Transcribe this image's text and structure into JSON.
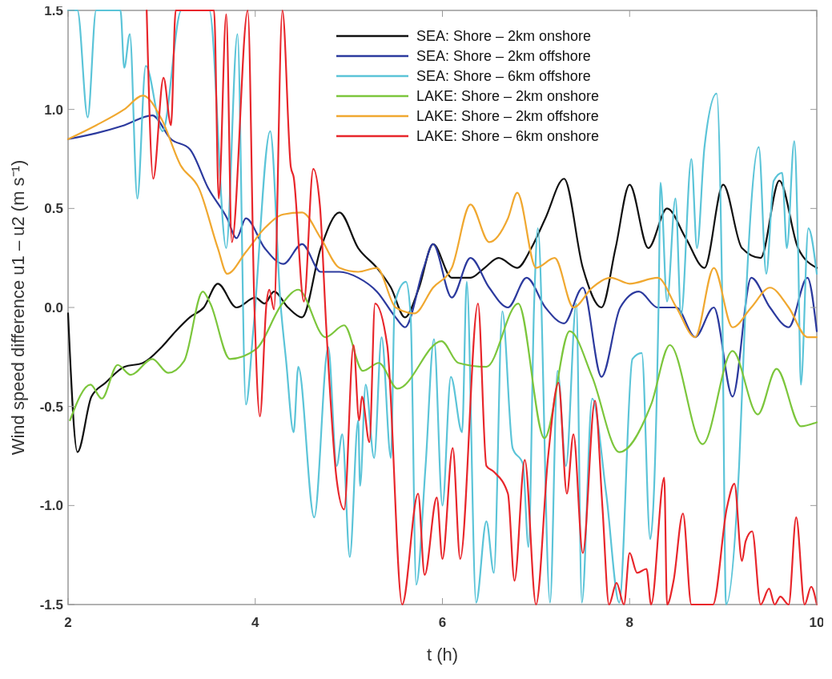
{
  "chart_data": {
    "type": "line",
    "xlabel": "t (h)",
    "ylabel": "Wind speed difference u1 – u2 (m s⁻¹)",
    "xlim": [
      2,
      10
    ],
    "ylim": [
      -1.5,
      1.5
    ],
    "xticks": [
      2,
      4,
      6,
      8,
      10
    ],
    "yticks": [
      {
        "value": -1.5,
        "label": "-1.5"
      },
      {
        "value": -1,
        "label": "-1.0"
      },
      {
        "value": -0.5,
        "label": "-0.5"
      },
      {
        "value": 0,
        "label": "0.0"
      },
      {
        "value": 0.5,
        "label": "0.5"
      },
      {
        "value": 1,
        "label": "1.0"
      },
      {
        "value": 1.5,
        "label": "1.5"
      }
    ],
    "legend": "top right",
    "series": [
      {
        "name": "SEA: Shore – 2km onshore",
        "color": "#111111",
        "x": [
          2,
          2.1,
          2.25,
          2.4,
          2.6,
          2.8,
          3.0,
          3.15,
          3.3,
          3.45,
          3.6,
          3.8,
          4.0,
          4.1,
          4.2,
          4.35,
          4.5,
          4.7,
          4.9,
          5.1,
          5.3,
          5.45,
          5.6,
          5.75,
          5.9,
          6.1,
          6.3,
          6.45,
          6.6,
          6.8,
          6.95,
          7.1,
          7.3,
          7.5,
          7.7,
          7.85,
          8.0,
          8.2,
          8.4,
          8.6,
          8.8,
          9.0,
          9.2,
          9.4,
          9.6,
          9.8,
          10
        ],
        "values": [
          -0.03,
          -0.73,
          -0.45,
          -0.38,
          -0.3,
          -0.28,
          -0.2,
          -0.12,
          -0.05,
          0.0,
          0.12,
          0.0,
          0.05,
          0.02,
          0.08,
          0.0,
          -0.05,
          0.3,
          0.48,
          0.3,
          0.2,
          0.1,
          -0.05,
          0.1,
          0.32,
          0.15,
          0.15,
          0.2,
          0.25,
          0.2,
          0.3,
          0.45,
          0.65,
          0.2,
          0.0,
          0.3,
          0.62,
          0.3,
          0.5,
          0.35,
          0.2,
          0.62,
          0.3,
          0.25,
          0.64,
          0.3,
          0.2
        ]
      },
      {
        "name": "SEA: Shore – 2km offshore",
        "color": "#2c3a9e",
        "x": [
          2,
          2.3,
          2.6,
          2.9,
          3.1,
          3.3,
          3.5,
          3.7,
          3.8,
          3.9,
          4.1,
          4.3,
          4.5,
          4.7,
          4.9,
          5.1,
          5.3,
          5.5,
          5.6,
          5.8,
          5.9,
          6.1,
          6.3,
          6.5,
          6.7,
          6.9,
          7.1,
          7.3,
          7.5,
          7.7,
          7.9,
          8.1,
          8.3,
          8.5,
          8.7,
          8.9,
          9.1,
          9.3,
          9.5,
          9.7,
          9.9,
          10
        ],
        "values": [
          0.85,
          0.88,
          0.92,
          0.97,
          0.85,
          0.8,
          0.6,
          0.45,
          0.35,
          0.45,
          0.3,
          0.22,
          0.32,
          0.18,
          0.18,
          0.15,
          0.08,
          -0.05,
          -0.1,
          0.2,
          0.32,
          0.05,
          0.25,
          0.1,
          0.0,
          0.15,
          0.0,
          -0.08,
          0.1,
          -0.35,
          0.0,
          0.08,
          0.0,
          0.0,
          -0.15,
          0.0,
          -0.45,
          0.15,
          0.0,
          -0.1,
          0.15,
          -0.12
        ]
      },
      {
        "name": "SEA: Shore – 6km offshore",
        "color": "#5bc4d8",
        "x": [
          2,
          2.1,
          2.21,
          2.3,
          2.56,
          2.6,
          2.66,
          2.74,
          2.83,
          3.01,
          3.21,
          3.51,
          3.69,
          3.81,
          3.9,
          3.98,
          4.16,
          4.27,
          4.33,
          4.41,
          4.46,
          4.63,
          4.78,
          4.87,
          4.93,
          5.01,
          5.1,
          5.12,
          5.18,
          5.27,
          5.35,
          5.45,
          5.49,
          5.61,
          5.66,
          5.72,
          5.82,
          5.91,
          6.0,
          6.09,
          6.21,
          6.26,
          6.36,
          6.47,
          6.55,
          6.64,
          6.75,
          6.86,
          6.92,
          6.98,
          7.02,
          7.15,
          7.23,
          7.32,
          7.43,
          7.49,
          7.6,
          7.75,
          7.89,
          8.03,
          8.13,
          8.22,
          8.31,
          8.33,
          8.4,
          8.49,
          8.55,
          8.66,
          8.72,
          8.8,
          8.93,
          8.99,
          9.03,
          9.17,
          9.24,
          9.38,
          9.46,
          9.54,
          9.63,
          9.68,
          9.76,
          9.8,
          9.83,
          9.91,
          10
        ],
        "values": [
          1.5,
          1.5,
          0.96,
          1.5,
          1.5,
          1.21,
          1.38,
          0.55,
          1.22,
          0.89,
          1.5,
          1.5,
          0.3,
          1.38,
          -0.49,
          -0.11,
          0.89,
          0.02,
          -0.27,
          -0.63,
          -0.3,
          -1.06,
          -0.2,
          -0.8,
          -0.64,
          -1.26,
          -0.57,
          -0.9,
          -0.39,
          -0.76,
          -0.15,
          -0.76,
          0.02,
          0.13,
          -0.04,
          -1.4,
          -0.8,
          -0.16,
          -1.0,
          -0.35,
          -0.63,
          0.13,
          -1.49,
          -1.08,
          -1.34,
          -0.02,
          -0.71,
          -0.79,
          -1.21,
          0.02,
          0.4,
          -1.49,
          -0.32,
          -0.8,
          0.02,
          -1.49,
          -0.46,
          -0.94,
          -1.49,
          -0.26,
          -0.23,
          -1.17,
          0.02,
          0.63,
          0.03,
          0.55,
          -0.04,
          0.75,
          0.3,
          0.81,
          1.08,
          0.03,
          -1.5,
          -0.8,
          0.02,
          0.81,
          0.17,
          0.64,
          0.68,
          0.3,
          0.84,
          0.3,
          -0.39,
          0.4,
          0.17
        ]
      },
      {
        "name": "LAKE: Shore – 2km onshore",
        "color": "#7cc63c",
        "x": [
          2.02,
          2.24,
          2.36,
          2.53,
          2.67,
          2.9,
          3.07,
          3.24,
          3.44,
          3.52,
          3.73,
          4.01,
          4.29,
          4.46,
          4.75,
          4.95,
          5.15,
          5.32,
          5.52,
          5.99,
          6.17,
          6.47,
          6.81,
          7.09,
          7.36,
          7.6,
          7.89,
          8.23,
          8.43,
          8.78,
          9.1,
          9.37,
          9.57,
          9.83,
          10
        ],
        "values": [
          -0.57,
          -0.39,
          -0.46,
          -0.29,
          -0.34,
          -0.26,
          -0.33,
          -0.27,
          0.08,
          0.02,
          -0.26,
          -0.21,
          0.02,
          0.09,
          -0.15,
          -0.09,
          -0.32,
          -0.28,
          -0.41,
          -0.17,
          -0.28,
          -0.3,
          0.02,
          -0.66,
          -0.12,
          -0.35,
          -0.73,
          -0.49,
          -0.19,
          -0.69,
          -0.22,
          -0.54,
          -0.31,
          -0.6,
          -0.58
        ]
      },
      {
        "name": "LAKE: Shore – 2km offshore",
        "color": "#f0a830",
        "x": [
          2,
          2.3,
          2.6,
          2.8,
          3.0,
          3.2,
          3.4,
          3.6,
          3.7,
          3.9,
          4.1,
          4.3,
          4.5,
          4.7,
          4.9,
          5.1,
          5.3,
          5.5,
          5.7,
          5.9,
          6.1,
          6.3,
          6.5,
          6.7,
          6.8,
          7.0,
          7.2,
          7.4,
          7.6,
          7.8,
          8.0,
          8.3,
          8.5,
          8.7,
          8.9,
          9.1,
          9.3,
          9.5,
          9.7,
          9.9,
          10
        ],
        "values": [
          0.85,
          0.92,
          1.0,
          1.07,
          0.95,
          0.72,
          0.6,
          0.3,
          0.17,
          0.28,
          0.4,
          0.47,
          0.48,
          0.35,
          0.2,
          0.18,
          0.2,
          0.0,
          -0.03,
          0.1,
          0.2,
          0.52,
          0.33,
          0.45,
          0.58,
          0.2,
          0.25,
          0.0,
          0.1,
          0.15,
          0.12,
          0.15,
          0.0,
          -0.15,
          0.2,
          -0.1,
          0.0,
          0.1,
          0.0,
          -0.15,
          -0.15
        ]
      },
      {
        "name": "LAKE: Shore – 6km onshore",
        "color": "#e8262b",
        "x": [
          2.84,
          2.91,
          3.02,
          3.1,
          3.15,
          3.56,
          3.61,
          3.69,
          3.75,
          3.92,
          3.99,
          4.05,
          4.12,
          4.15,
          4.2,
          4.29,
          4.38,
          4.41,
          4.52,
          4.62,
          4.69,
          4.76,
          4.87,
          4.95,
          5.05,
          5.11,
          5.14,
          5.22,
          5.28,
          5.41,
          5.57,
          5.74,
          5.81,
          5.94,
          6.0,
          6.11,
          6.19,
          6.38,
          6.47,
          6.55,
          6.7,
          6.77,
          6.88,
          7.0,
          7.13,
          7.24,
          7.33,
          7.4,
          7.5,
          7.63,
          7.71,
          7.78,
          7.86,
          7.94,
          8.0,
          8.08,
          8.18,
          8.23,
          8.37,
          8.4,
          8.47,
          8.57,
          8.66,
          8.79,
          8.89,
          9.04,
          9.12,
          9.2,
          9.24,
          9.31,
          9.4,
          9.49,
          9.55,
          9.61,
          9.7,
          9.78,
          9.87,
          9.94,
          10
        ],
        "values": [
          1.5,
          0.65,
          1.16,
          0.92,
          1.5,
          1.5,
          0.55,
          1.48,
          0.33,
          1.5,
          0.02,
          -0.55,
          0.02,
          0.09,
          -0.01,
          1.5,
          0.71,
          0.66,
          0.03,
          0.7,
          0.52,
          -0.11,
          -0.87,
          -1.02,
          -0.19,
          -0.57,
          -0.45,
          -0.68,
          0.02,
          -0.19,
          -1.5,
          -0.94,
          -1.35,
          -0.96,
          -1.27,
          -0.71,
          -1.27,
          0.02,
          -0.8,
          -0.83,
          -0.94,
          -1.38,
          -0.77,
          -1.5,
          -0.75,
          -0.38,
          -0.94,
          -0.64,
          -1.24,
          -0.47,
          -1.01,
          -1.5,
          -1.39,
          -1.5,
          -1.24,
          -1.34,
          -1.32,
          -1.5,
          -0.86,
          -1.5,
          -1.38,
          -1.04,
          -1.5,
          -1.5,
          -1.5,
          -1.01,
          -0.89,
          -1.28,
          -1.18,
          -1.13,
          -1.5,
          -1.42,
          -1.5,
          -1.46,
          -1.5,
          -1.06,
          -1.5,
          -1.41,
          -1.5
        ]
      }
    ]
  }
}
